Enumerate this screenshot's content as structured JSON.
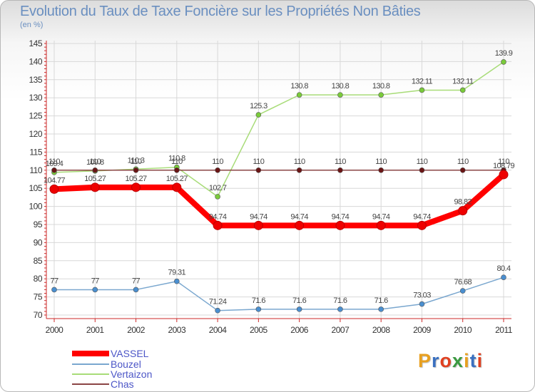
{
  "title": "Evolution du Taux de Taxe Foncière sur les Propriétés Non Bâties",
  "subtitle": "(en %)",
  "logo": {
    "text": "Proxiti",
    "colors": [
      "#e8a020",
      "#3a70c0",
      "#e04020",
      "#3a9a40",
      "#e8a020",
      "#3a70c0",
      "#e04020"
    ]
  },
  "chart_data": {
    "type": "line",
    "categories": [
      "2000",
      "2001",
      "2002",
      "2003",
      "2004",
      "2005",
      "2006",
      "2007",
      "2008",
      "2009",
      "2010",
      "2011"
    ],
    "ylim": [
      70,
      145
    ],
    "yticks": [
      70,
      75,
      80,
      85,
      90,
      95,
      100,
      105,
      110,
      115,
      120,
      125,
      130,
      135,
      140,
      145
    ],
    "grid": true,
    "legend_position": "bottom-left",
    "series": [
      {
        "name": "VASSEL",
        "color": "#ff0000",
        "point": "#ee0000",
        "width": 8,
        "radius": 6,
        "values": [
          104.77,
          105.27,
          105.27,
          105.27,
          94.74,
          94.74,
          94.74,
          94.74,
          94.74,
          94.74,
          98.82,
          108.79
        ],
        "labels": [
          "104.77",
          "105.27",
          "105.27",
          "105.27",
          "94.74",
          "94.74",
          "94.74",
          "94.74",
          "94.74",
          "94.74",
          "98.82",
          "108.79"
        ]
      },
      {
        "name": "Bouzel",
        "color": "#7aa7cf",
        "point": "#4a8fd0",
        "width": 1.5,
        "radius": 3.5,
        "values": [
          77,
          77,
          77,
          79.31,
          71.24,
          71.6,
          71.6,
          71.6,
          71.6,
          73.03,
          76.68,
          80.4
        ],
        "labels": [
          "77",
          "77",
          "77",
          "79.31",
          "71.24",
          "71.6",
          "71.6",
          "71.6",
          "71.6",
          "73.03",
          "76.68",
          "80.4"
        ]
      },
      {
        "name": "Vertaizon",
        "color": "#a8dc78",
        "point": "#7acb3a",
        "width": 1.5,
        "radius": 3.5,
        "values": [
          109.4,
          109.8,
          110.3,
          110.8,
          102.7,
          125.3,
          130.8,
          130.8,
          130.8,
          132.11,
          132.11,
          139.9
        ],
        "labels": [
          "109.4",
          "109.8",
          "110.3",
          "110.8",
          "102.7",
          "125.3",
          "130.8",
          "130.8",
          "130.8",
          "132.11",
          "132.11",
          "139.9"
        ]
      },
      {
        "name": "Chas",
        "color": "#8b4545",
        "point": "#6a1515",
        "width": 1.5,
        "radius": 3.5,
        "values": [
          110,
          110,
          110,
          110,
          110,
          110,
          110,
          110,
          110,
          110,
          110,
          110
        ],
        "labels": [
          "110",
          "110",
          "110",
          "110",
          "110",
          "110",
          "110",
          "110",
          "110",
          "110",
          "110",
          "110"
        ]
      }
    ]
  }
}
